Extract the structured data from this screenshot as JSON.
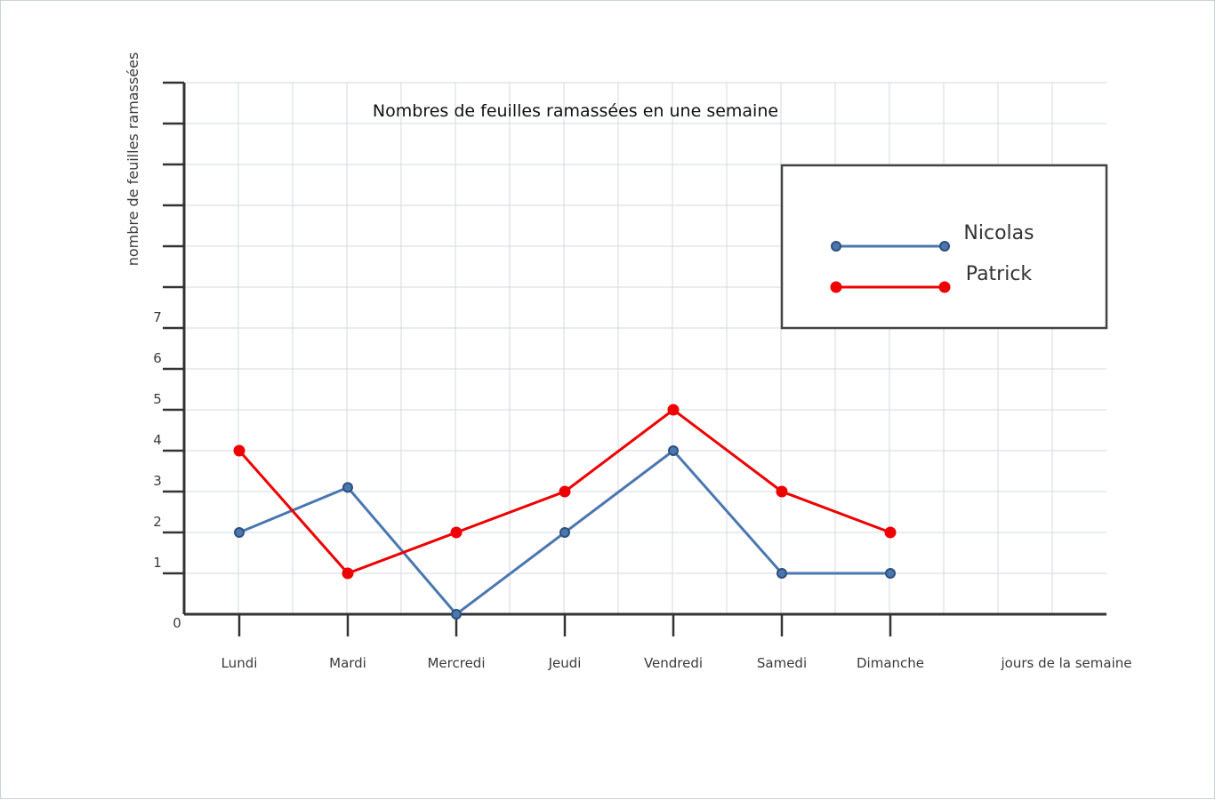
{
  "chart_data": {
    "type": "line",
    "title": "Nombres de feuilles ramassées en une semaine",
    "xlabel": "jours de la semaine",
    "ylabel": "nombre de feuilles ramassées",
    "categories": [
      "Lundi",
      "Mardi",
      "Mercredi",
      "Jeudi",
      "Vendredi",
      "Samedi",
      "Dimanche"
    ],
    "y_tick_labels": [
      "0",
      "1",
      "2",
      "3",
      "4",
      "5",
      "6",
      "7"
    ],
    "ylim": [
      0,
      13
    ],
    "grid": true,
    "legend_position": "top-right",
    "series": [
      {
        "name": "Nicolas",
        "color": "#4a77b0",
        "values": [
          2,
          3.1,
          0,
          2,
          4,
          1,
          1
        ]
      },
      {
        "name": "Patrick",
        "color": "#ee0000",
        "values": [
          4,
          1,
          2,
          3,
          5,
          3,
          2
        ]
      }
    ]
  }
}
